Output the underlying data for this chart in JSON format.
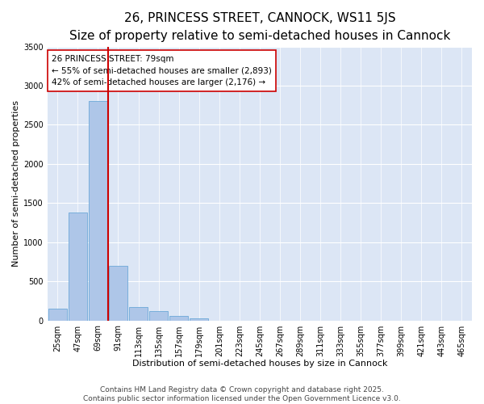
{
  "title_line1": "26, PRINCESS STREET, CANNOCK, WS11 5JS",
  "title_line2": "Size of property relative to semi-detached houses in Cannock",
  "xlabel": "Distribution of semi-detached houses by size in Cannock",
  "ylabel": "Number of semi-detached properties",
  "categories": [
    "25sqm",
    "47sqm",
    "69sqm",
    "91sqm",
    "113sqm",
    "135sqm",
    "157sqm",
    "179sqm",
    "201sqm",
    "223sqm",
    "245sqm",
    "267sqm",
    "289sqm",
    "311sqm",
    "333sqm",
    "355sqm",
    "377sqm",
    "399sqm",
    "421sqm",
    "443sqm",
    "465sqm"
  ],
  "values": [
    155,
    1380,
    2800,
    700,
    175,
    120,
    55,
    25,
    0,
    0,
    0,
    0,
    0,
    0,
    0,
    0,
    0,
    0,
    0,
    0,
    0
  ],
  "bar_color": "#aec6e8",
  "bar_edgecolor": "#5a9fd4",
  "background_color": "#dce6f5",
  "vline_color": "#cc0000",
  "annotation_text": "26 PRINCESS STREET: 79sqm\n← 55% of semi-detached houses are smaller (2,893)\n42% of semi-detached houses are larger (2,176) →",
  "annotation_box_facecolor": "#ffffff",
  "annotation_box_edgecolor": "#cc0000",
  "ylim": [
    0,
    3500
  ],
  "yticks": [
    0,
    500,
    1000,
    1500,
    2000,
    2500,
    3000,
    3500
  ],
  "footer_line1": "Contains HM Land Registry data © Crown copyright and database right 2025.",
  "footer_line2": "Contains public sector information licensed under the Open Government Licence v3.0.",
  "title_fontsize": 11,
  "subtitle_fontsize": 9,
  "axis_label_fontsize": 8,
  "tick_fontsize": 7,
  "annotation_fontsize": 7.5,
  "footer_fontsize": 6.5
}
